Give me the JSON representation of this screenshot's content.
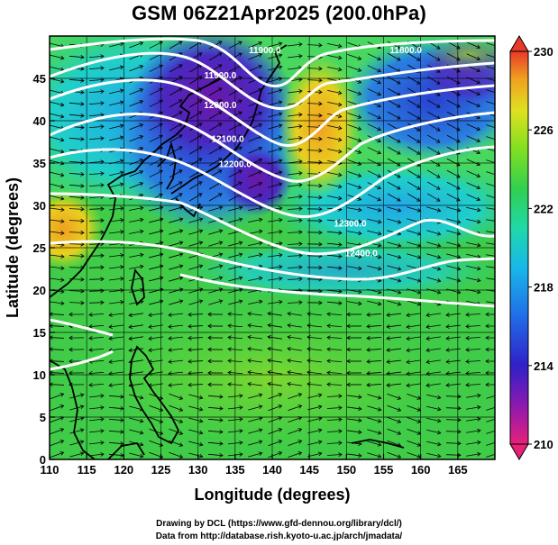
{
  "title": "GSM 06Z21Apr2025 (200.0hPa)",
  "map": {
    "x_axis": {
      "label": "Longitude (degrees)",
      "ticks": [
        "110",
        "115",
        "120",
        "125",
        "130",
        "135",
        "140",
        "145",
        "150",
        "155",
        "160",
        "165"
      ],
      "range": [
        110,
        170
      ]
    },
    "y_axis": {
      "label": "Latitude  (degrees)",
      "ticks": [
        "0",
        "5",
        "10",
        "15",
        "20",
        "25",
        "30",
        "35",
        "40",
        "45"
      ],
      "range": [
        0,
        50
      ]
    },
    "shading_variable": "temperature (K)",
    "contour_variable": "geopotential height (m)",
    "contour_labels": [
      {
        "text": "11900.0",
        "lon": 139,
        "lat": 48
      },
      {
        "text": "11800.0",
        "lon": 158,
        "lat": 48
      },
      {
        "text": "11900.0",
        "lon": 133,
        "lat": 45
      },
      {
        "text": "12000.0",
        "lon": 133,
        "lat": 41.5
      },
      {
        "text": "12100.0",
        "lon": 134,
        "lat": 37.5
      },
      {
        "text": "12200.0",
        "lon": 135,
        "lat": 34.5
      },
      {
        "text": "12300.0",
        "lon": 150.5,
        "lat": 27.5
      },
      {
        "text": "12400.0",
        "lon": 152,
        "lat": 24
      }
    ],
    "colors": {
      "frame": "#000000",
      "grid": "#000000",
      "contour": "#ffffff",
      "coast": "#000000"
    }
  },
  "colorbar": {
    "labels": [
      "230",
      "226",
      "222",
      "218",
      "214",
      "210"
    ],
    "range": [
      210,
      230
    ],
    "colors": [
      "#e8207a",
      "#6a1aa8",
      "#2030d8",
      "#1a9ee8",
      "#20d8c0",
      "#30d050",
      "#80e020",
      "#e8e020",
      "#f0a020",
      "#e83a28"
    ]
  },
  "credits": {
    "line1": "Drawing by DCL (https://www.gfd-dennou.org/library/dcl/)",
    "line2": "Data from http://database.rish.kyoto-u.ac.jp/arch/jmadata/"
  }
}
